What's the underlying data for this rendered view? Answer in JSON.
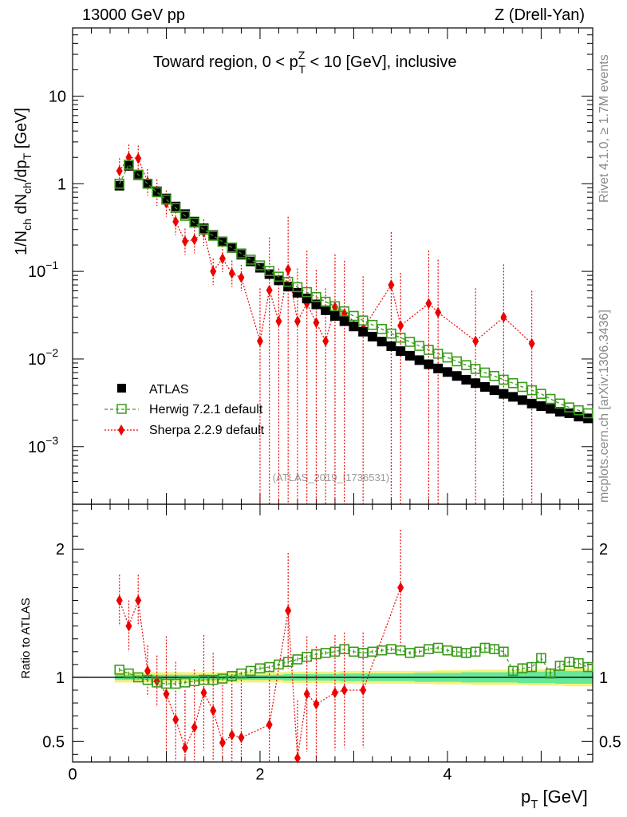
{
  "header": {
    "left": "13000 GeV pp",
    "right": "Z (Drell-Yan)"
  },
  "side_labels": {
    "rivet": "Rivet 4.1.0, ≥ 1.7M events",
    "mcplots": "mcplots.cern.ch [arXiv:1306.3436]"
  },
  "colors": {
    "atlas": "#000000",
    "herwig": "#3a9a1a",
    "sherpa": "#ee0000",
    "band_inner": "#66e89a",
    "band_outer": "#f2f27a"
  },
  "chart_data": [
    {
      "type": "scatter",
      "title_main": "Toward region, 0 < p",
      "title_sup": "Z",
      "title_sub": "T",
      "title_rest": " < 10 [GeV], inclusive",
      "ylabel_parts": [
        "1/N",
        "ch",
        " dN",
        "ch",
        "/dp",
        "T",
        " [GeV]"
      ],
      "yscale": "log",
      "ylim": [
        0.00022,
        60
      ],
      "xlim": [
        0,
        5.55
      ],
      "y_ticks": [
        {
          "value": 10,
          "label": "10",
          "sup": ""
        },
        {
          "value": 1,
          "label": "1",
          "sup": ""
        },
        {
          "value": 0.1,
          "label": "10",
          "sup": "−1"
        },
        {
          "value": 0.01,
          "label": "10",
          "sup": "−2"
        },
        {
          "value": 0.001,
          "label": "10",
          "sup": "−3"
        }
      ],
      "watermark": "(ATLAS_2019_I1736531)",
      "legend": [
        {
          "label": "ATLAS",
          "marker": "square"
        },
        {
          "label": "Herwig 7.2.1 default",
          "marker": "open-square"
        },
        {
          "label": "Sherpa 2.2.9 default",
          "marker": "diamond"
        }
      ],
      "x": [
        0.5,
        0.6,
        0.7,
        0.8,
        0.9,
        1.0,
        1.1,
        1.2,
        1.3,
        1.4,
        1.5,
        1.6,
        1.7,
        1.8,
        1.9,
        2.0,
        2.1,
        2.2,
        2.3,
        2.4,
        2.5,
        2.6,
        2.7,
        2.8,
        2.9,
        3.0,
        3.1,
        3.2,
        3.3,
        3.4,
        3.5,
        3.6,
        3.7,
        3.8,
        3.9,
        4.0,
        4.1,
        4.2,
        4.3,
        4.4,
        4.5,
        4.6,
        4.7,
        4.8,
        4.9,
        5.0,
        5.1,
        5.2,
        5.3,
        5.4,
        5.5
      ],
      "atlas": [
        0.95,
        1.6,
        1.25,
        1.0,
        0.82,
        0.68,
        0.55,
        0.45,
        0.37,
        0.31,
        0.26,
        0.22,
        0.185,
        0.155,
        0.13,
        0.11,
        0.093,
        0.079,
        0.067,
        0.057,
        0.049,
        0.042,
        0.036,
        0.031,
        0.027,
        0.0235,
        0.0205,
        0.018,
        0.0158,
        0.014,
        0.0123,
        0.0109,
        0.0097,
        0.0087,
        0.0078,
        0.0071,
        0.0064,
        0.0058,
        0.0053,
        0.0048,
        0.0044,
        0.004,
        0.0037,
        0.0034,
        0.0031,
        0.0029,
        0.0027,
        0.0025,
        0.0024,
        0.0022,
        0.0021
      ],
      "herwig": [
        1.0,
        1.65,
        1.27,
        1.0,
        0.8,
        0.66,
        0.53,
        0.43,
        0.36,
        0.3,
        0.255,
        0.218,
        0.187,
        0.16,
        0.136,
        0.117,
        0.101,
        0.087,
        0.076,
        0.066,
        0.058,
        0.051,
        0.045,
        0.04,
        0.035,
        0.031,
        0.0275,
        0.0245,
        0.022,
        0.0195,
        0.0175,
        0.0157,
        0.0141,
        0.0127,
        0.0115,
        0.0104,
        0.0094,
        0.0085,
        0.0077,
        0.007,
        0.0064,
        0.0058,
        0.0053,
        0.0048,
        0.0044,
        0.004,
        0.0035,
        0.0031,
        0.0028,
        0.0026,
        0.0024
      ],
      "sherpa_x": [
        0.5,
        0.6,
        0.7,
        0.8,
        0.9,
        1.0,
        1.1,
        1.2,
        1.3,
        1.4,
        1.5,
        1.6,
        1.7,
        1.8,
        2.0,
        2.1,
        2.2,
        2.3,
        2.4,
        2.5,
        2.6,
        2.7,
        2.8,
        2.9,
        3.1,
        3.4,
        3.5,
        3.8,
        3.9,
        4.3,
        4.6,
        4.9
      ],
      "sherpa": [
        1.4,
        2.0,
        1.95,
        1.05,
        0.8,
        0.6,
        0.37,
        0.22,
        0.23,
        0.28,
        0.1,
        0.14,
        0.095,
        0.085,
        0.016,
        0.061,
        0.027,
        0.105,
        0.027,
        0.043,
        0.026,
        0.016,
        0.039,
        0.033,
        0.022,
        0.07,
        0.024,
        0.043,
        0.034,
        0.016,
        0.03,
        0.015
      ]
    },
    {
      "type": "scatter",
      "ylabel": "Ratio to ATLAS",
      "xlabel": "p",
      "xlabel_sub": "T",
      "xlabel_rest": " [GeV]",
      "ylim": [
        0.34,
        2.35
      ],
      "xlim": [
        0,
        5.55
      ],
      "x_ticks": [
        0,
        2,
        4
      ],
      "y_ticks": [
        {
          "value": 2,
          "label": "2"
        },
        {
          "value": 1,
          "label": "1"
        },
        {
          "value": 0.5,
          "label": "0.5"
        }
      ],
      "x": [
        0.5,
        0.6,
        0.7,
        0.8,
        0.9,
        1.0,
        1.1,
        1.2,
        1.3,
        1.4,
        1.5,
        1.6,
        1.7,
        1.8,
        1.9,
        2.0,
        2.1,
        2.2,
        2.3,
        2.4,
        2.5,
        2.6,
        2.7,
        2.8,
        2.9,
        3.0,
        3.1,
        3.2,
        3.3,
        3.4,
        3.5,
        3.6,
        3.7,
        3.8,
        3.9,
        4.0,
        4.1,
        4.2,
        4.3,
        4.4,
        4.5,
        4.6,
        4.7,
        4.8,
        4.9,
        5.0,
        5.1,
        5.2,
        5.3,
        5.4,
        5.5
      ],
      "herwig_ratio": [
        1.06,
        1.03,
        1.0,
        0.98,
        0.96,
        0.95,
        0.95,
        0.96,
        0.97,
        0.98,
        0.98,
        0.99,
        1.01,
        1.03,
        1.05,
        1.07,
        1.08,
        1.1,
        1.12,
        1.14,
        1.16,
        1.18,
        1.19,
        1.2,
        1.22,
        1.2,
        1.19,
        1.2,
        1.21,
        1.22,
        1.21,
        1.19,
        1.2,
        1.22,
        1.23,
        1.21,
        1.2,
        1.19,
        1.2,
        1.23,
        1.22,
        1.2,
        1.05,
        1.07,
        1.08,
        1.15,
        1.03,
        1.09,
        1.12,
        1.11,
        1.08
      ],
      "band_half_inner": [
        0.02,
        0.02,
        0.02,
        0.02,
        0.02,
        0.02,
        0.02,
        0.02,
        0.02,
        0.02,
        0.02,
        0.02,
        0.02,
        0.02,
        0.02,
        0.02,
        0.02,
        0.02,
        0.025,
        0.025,
        0.025,
        0.025,
        0.025,
        0.025,
        0.03,
        0.03,
        0.03,
        0.03,
        0.03,
        0.03,
        0.03,
        0.03,
        0.035,
        0.035,
        0.035,
        0.035,
        0.035,
        0.04,
        0.04,
        0.04,
        0.04,
        0.04,
        0.04,
        0.045,
        0.045,
        0.045,
        0.045,
        0.05,
        0.05,
        0.05,
        0.05
      ],
      "band_half_outer": [
        0.04,
        0.04,
        0.04,
        0.04,
        0.04,
        0.04,
        0.04,
        0.04,
        0.04,
        0.04,
        0.04,
        0.04,
        0.04,
        0.04,
        0.04,
        0.04,
        0.04,
        0.04,
        0.045,
        0.045,
        0.045,
        0.045,
        0.045,
        0.045,
        0.05,
        0.05,
        0.05,
        0.05,
        0.05,
        0.05,
        0.05,
        0.05,
        0.05,
        0.05,
        0.055,
        0.055,
        0.055,
        0.055,
        0.06,
        0.06,
        0.06,
        0.06,
        0.06,
        0.06,
        0.065,
        0.065,
        0.065,
        0.065,
        0.07,
        0.07,
        0.07
      ],
      "sherpa_x": [
        0.5,
        0.6,
        0.7,
        0.8,
        0.9,
        1.0,
        1.1,
        1.2,
        1.3,
        1.4,
        1.5,
        1.6,
        1.7,
        1.8,
        2.1,
        2.3,
        2.4,
        2.5,
        2.6,
        2.8,
        2.9,
        3.1,
        3.5
      ],
      "sherpa_ratio": [
        1.6,
        1.4,
        1.6,
        1.05,
        0.97,
        0.87,
        0.67,
        0.45,
        0.61,
        0.88,
        0.74,
        0.49,
        0.55,
        0.53,
        0.63,
        1.52,
        0.37,
        0.87,
        0.79,
        0.88,
        0.9,
        0.9,
        1.7
      ]
    }
  ]
}
